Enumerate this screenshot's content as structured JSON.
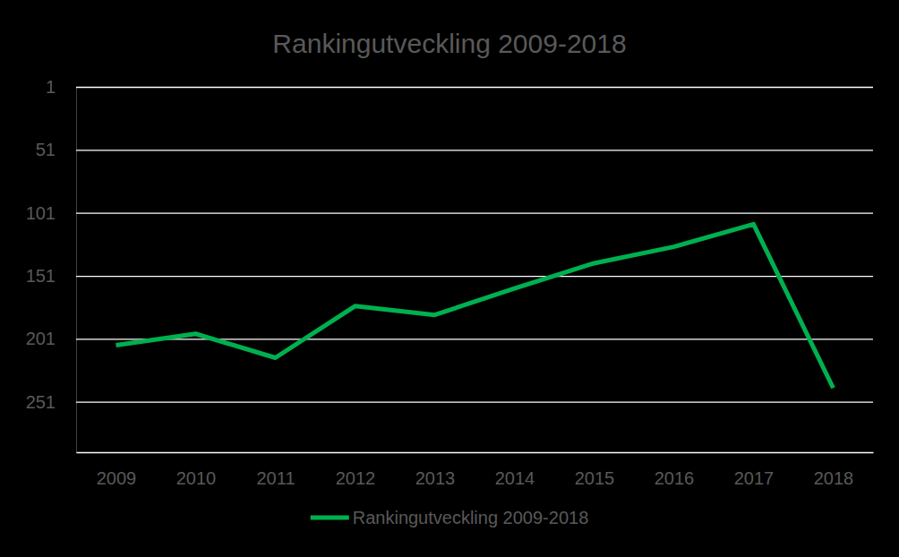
{
  "chart_data": {
    "type": "line",
    "title": "Rankingutveckling 2009-2018",
    "categories": [
      "2009",
      "2010",
      "2011",
      "2012",
      "2013",
      "2014",
      "2015",
      "2016",
      "2017",
      "2018"
    ],
    "series": [
      {
        "name": "Rankingutveckling 2009-2018",
        "color": "#00b050",
        "values": [
          206,
          197,
          216,
          175,
          182,
          161,
          141,
          128,
          110,
          240
        ]
      }
    ],
    "ylim": [
      1,
      291
    ],
    "yticks": [
      1,
      51,
      101,
      151,
      201,
      251
    ],
    "grid": true,
    "legend": "bottom"
  }
}
